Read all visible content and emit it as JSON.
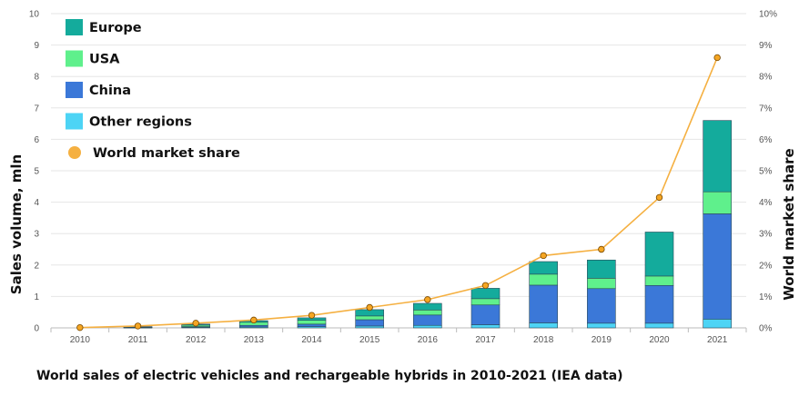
{
  "caption": "World sales of electric vehicles and rechargeable hybrids in 2010-2021 (IEA data)",
  "chart_data": {
    "type": "bar",
    "stacked": true,
    "categories": [
      "2010",
      "2011",
      "2012",
      "2013",
      "2014",
      "2015",
      "2016",
      "2017",
      "2018",
      "2019",
      "2020",
      "2021"
    ],
    "series": [
      {
        "name": "Other regions",
        "color": "#4dd4f5",
        "values": [
          0.0,
          0.01,
          0.02,
          0.03,
          0.04,
          0.06,
          0.08,
          0.1,
          0.16,
          0.15,
          0.15,
          0.28
        ]
      },
      {
        "name": "China",
        "color": "#3b78d8",
        "values": [
          0.0,
          0.01,
          0.02,
          0.05,
          0.08,
          0.2,
          0.33,
          0.63,
          1.2,
          1.1,
          1.2,
          3.35
        ]
      },
      {
        "name": "USA",
        "color": "#5ff08c",
        "values": [
          0.0,
          0.01,
          0.05,
          0.1,
          0.12,
          0.12,
          0.16,
          0.2,
          0.35,
          0.33,
          0.3,
          0.7
        ]
      },
      {
        "name": "Europe",
        "color": "#14ab9c",
        "values": [
          0.0,
          0.01,
          0.03,
          0.05,
          0.08,
          0.2,
          0.21,
          0.33,
          0.4,
          0.58,
          1.4,
          2.27
        ]
      }
    ],
    "line_series": {
      "name": "World market share",
      "color": "#f5b041",
      "values": [
        0.01,
        0.06,
        0.15,
        0.25,
        0.4,
        0.65,
        0.9,
        1.35,
        2.3,
        2.5,
        4.15,
        8.6
      ]
    },
    "ylabel": "Sales volume, mln",
    "y2label": "World market share",
    "ylim": [
      0,
      10
    ],
    "yticks": [
      "0",
      "1",
      "2",
      "3",
      "4",
      "5",
      "6",
      "7",
      "8",
      "9",
      "10"
    ],
    "y2lim": [
      0,
      10
    ],
    "y2ticks": [
      "0%",
      "1%",
      "2%",
      "3%",
      "4%",
      "5%",
      "6%",
      "7%",
      "8%",
      "9%",
      "10%"
    ],
    "legend": [
      "Europe",
      "USA",
      "China",
      "Other regions",
      "World market share"
    ],
    "legend_position": "top-left",
    "grid": true
  }
}
